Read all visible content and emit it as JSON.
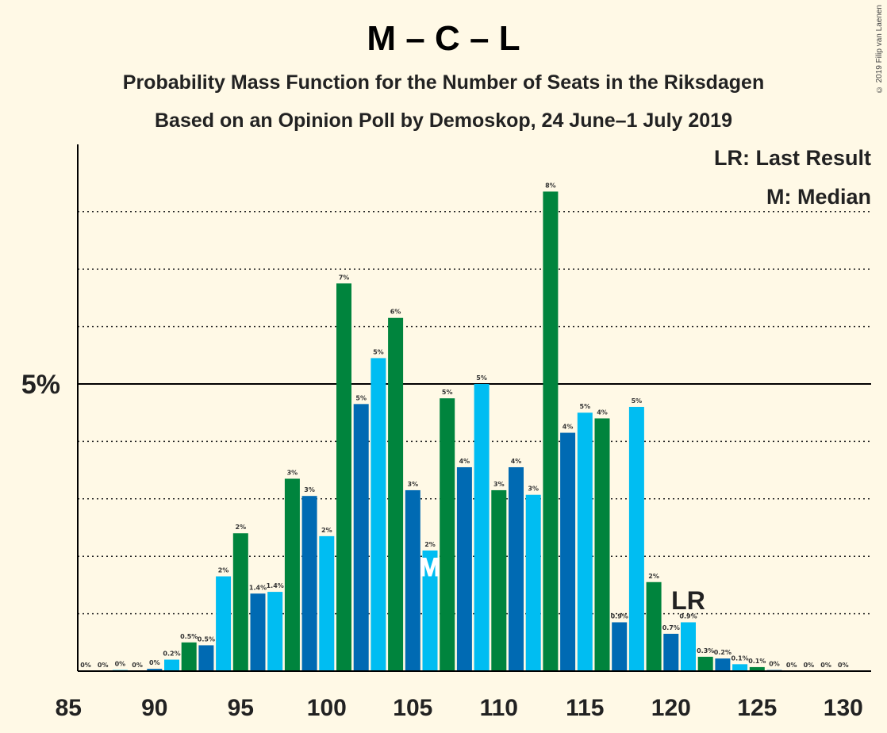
{
  "header": {
    "title": "M – C – L",
    "subtitle1": "Probability Mass Function for the Number of Seats in the Riksdagen",
    "subtitle2": "Based on an Opinion Poll by Demoskop, 24 June–1 July 2019",
    "legend_lr": "LR: Last Result",
    "legend_m": "M: Median",
    "copyright": "© 2019 Filip van Laenen"
  },
  "chart_data": {
    "type": "bar",
    "x": [
      86,
      87,
      88,
      89,
      90,
      91,
      92,
      93,
      94,
      95,
      96,
      97,
      98,
      99,
      100,
      101,
      102,
      103,
      104,
      105,
      106,
      107,
      108,
      109,
      110,
      111,
      112,
      113,
      114,
      115,
      116,
      117,
      118,
      119,
      120,
      121,
      122,
      123,
      124,
      125,
      126,
      127,
      128,
      129,
      130
    ],
    "values": [
      0,
      0,
      0.02,
      0,
      0.04,
      0.2,
      0.5,
      0.45,
      1.65,
      2.4,
      1.35,
      1.38,
      3.35,
      3.05,
      2.35,
      6.75,
      4.65,
      5.45,
      6.15,
      3.15,
      2.1,
      4.75,
      3.55,
      5.0,
      3.15,
      3.55,
      3.07,
      8.35,
      4.15,
      4.5,
      4.4,
      0.85,
      4.6,
      1.55,
      0.65,
      0.85,
      0.25,
      0.22,
      0.12,
      0.07,
      0.02,
      0,
      0,
      0,
      0
    ],
    "labels": [
      "0%",
      "0%",
      "0%",
      "0%",
      "0%",
      "0.2%",
      "0.5%",
      "0.5%",
      "2%",
      "2%",
      "1.4%",
      "1.4%",
      "3%",
      "3%",
      "2%",
      "7%",
      "5%",
      "5%",
      "6%",
      "3%",
      "2%",
      "5%",
      "4%",
      "5%",
      "3%",
      "4%",
      "3%",
      "8%",
      "4%",
      "5%",
      "4%",
      "0.9%",
      "5%",
      "2%",
      "0.7%",
      "0.9%",
      "0.3%",
      "0.2%",
      "0.1%",
      "0.1%",
      "0%",
      "0%",
      "0%",
      "0%",
      "0%"
    ],
    "colors": [
      "#00843d",
      "#006ab3",
      "#00bdf2"
    ],
    "xticks": [
      85,
      90,
      95,
      100,
      105,
      110,
      115,
      120,
      125,
      130
    ],
    "ytick_label": "5%",
    "ytick_value": 5,
    "ylim": [
      0,
      9
    ],
    "median": 106,
    "median_label": "M",
    "last_result": 121,
    "last_result_label": "LR"
  }
}
